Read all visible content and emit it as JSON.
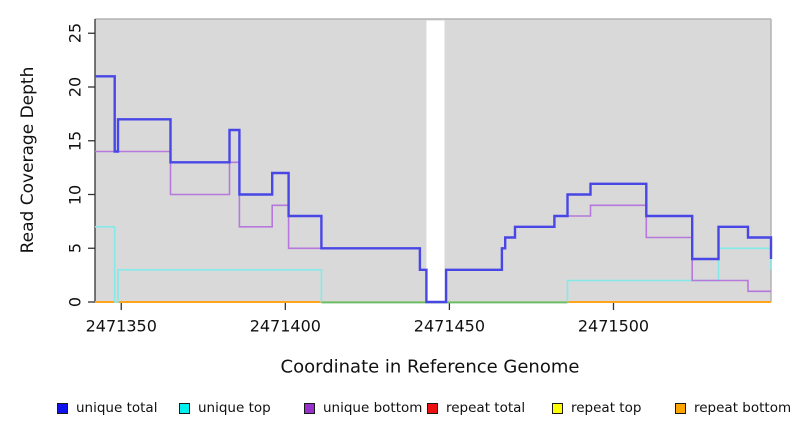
{
  "figure": {
    "background": "#ffffff",
    "plot_background": "#d9d9d9",
    "plot_edge_color": "#b3b3b3",
    "axis_color": "#333333"
  },
  "axes": {
    "x": {
      "label": "Coordinate in Reference Genome",
      "ticks": [
        {
          "value": 2471350,
          "label": "2471350"
        },
        {
          "value": 2471400,
          "label": "2471400"
        },
        {
          "value": 2471450,
          "label": "2471450"
        },
        {
          "value": 2471500,
          "label": "2471500"
        }
      ]
    },
    "y": {
      "label": "Read Coverage Depth",
      "ticks": [
        {
          "value": 0,
          "label": "0"
        },
        {
          "value": 5,
          "label": "5"
        },
        {
          "value": 10,
          "label": "10"
        },
        {
          "value": 15,
          "label": "15"
        },
        {
          "value": 20,
          "label": "20"
        },
        {
          "value": 25,
          "label": "25"
        }
      ]
    }
  },
  "legend": {
    "items": [
      {
        "label": "unique total",
        "color": "#1111ee"
      },
      {
        "label": "unique top",
        "color": "#00f0f0"
      },
      {
        "label": "unique bottom",
        "color": "#9932cc"
      },
      {
        "label": "repeat total",
        "color": "#ee1111"
      },
      {
        "label": "repeat top",
        "color": "#ffff00"
      },
      {
        "label": "repeat bottom",
        "color": "#ffa500"
      }
    ]
  },
  "chart_data": {
    "type": "step-line",
    "title": "",
    "xlabel": "Coordinate in Reference Genome",
    "ylabel": "Read Coverage Depth",
    "xlim": [
      2471342,
      2471548
    ],
    "ylim": [
      0,
      25
    ],
    "grid": false,
    "legend_position": "bottom",
    "gap_region": {
      "from": 2471443,
      "to": 2471448.5,
      "note": "white no-data band across plot"
    },
    "overlap_segment": {
      "from": 2471411,
      "to": 2471486,
      "value": 0,
      "color": "#68bc6a",
      "note": "unique top at depth 0 overlapping repeat lines renders green"
    },
    "series": [
      {
        "name": "unique total",
        "line_color": "#4946e6",
        "width": 2.4,
        "steps": [
          [
            2471342,
            21
          ],
          [
            2471348,
            14
          ],
          [
            2471349,
            17
          ],
          [
            2471365,
            13
          ],
          [
            2471383,
            16
          ],
          [
            2471386,
            10
          ],
          [
            2471396,
            12
          ],
          [
            2471401,
            8
          ],
          [
            2471411,
            5
          ],
          [
            2471441,
            3
          ],
          [
            2471443,
            0
          ],
          [
            2471449,
            3
          ],
          [
            2471466,
            5
          ],
          [
            2471467,
            6
          ],
          [
            2471470,
            7
          ],
          [
            2471482,
            8
          ],
          [
            2471486,
            10
          ],
          [
            2471493,
            11
          ],
          [
            2471510,
            8
          ],
          [
            2471524,
            4
          ],
          [
            2471532,
            7
          ],
          [
            2471541,
            6
          ],
          [
            2471548,
            4
          ]
        ]
      },
      {
        "name": "unique top",
        "line_color": "#86e9e9",
        "width": 1.6,
        "steps": [
          [
            2471342,
            7
          ],
          [
            2471348,
            0
          ],
          [
            2471349,
            3
          ],
          [
            2471411,
            0
          ],
          [
            2471486,
            2
          ],
          [
            2471532,
            5
          ],
          [
            2471548,
            3
          ]
        ]
      },
      {
        "name": "unique bottom",
        "line_color": "#b678dc",
        "width": 1.6,
        "steps": [
          [
            2471342,
            14
          ],
          [
            2471365,
            10
          ],
          [
            2471383,
            13
          ],
          [
            2471386,
            7
          ],
          [
            2471396,
            9
          ],
          [
            2471401,
            5
          ],
          [
            2471441,
            3
          ],
          [
            2471443,
            0
          ],
          [
            2471449,
            3
          ],
          [
            2471466,
            5
          ],
          [
            2471467,
            6
          ],
          [
            2471470,
            7
          ],
          [
            2471482,
            8
          ],
          [
            2471493,
            9
          ],
          [
            2471510,
            6
          ],
          [
            2471524,
            2
          ],
          [
            2471541,
            1
          ],
          [
            2471548,
            1
          ]
        ]
      },
      {
        "name": "repeat total",
        "line_color": "#ee1111",
        "width": 1.5,
        "steps": [
          [
            2471342,
            0
          ],
          [
            2471548,
            0
          ]
        ]
      },
      {
        "name": "repeat top",
        "line_color": "#ffff00",
        "width": 1.5,
        "steps": [
          [
            2471342,
            0
          ],
          [
            2471548,
            0
          ]
        ]
      },
      {
        "name": "repeat bottom",
        "line_color": "#ffa41e",
        "width": 2,
        "steps": [
          [
            2471342,
            0
          ],
          [
            2471548,
            0
          ]
        ]
      }
    ]
  }
}
